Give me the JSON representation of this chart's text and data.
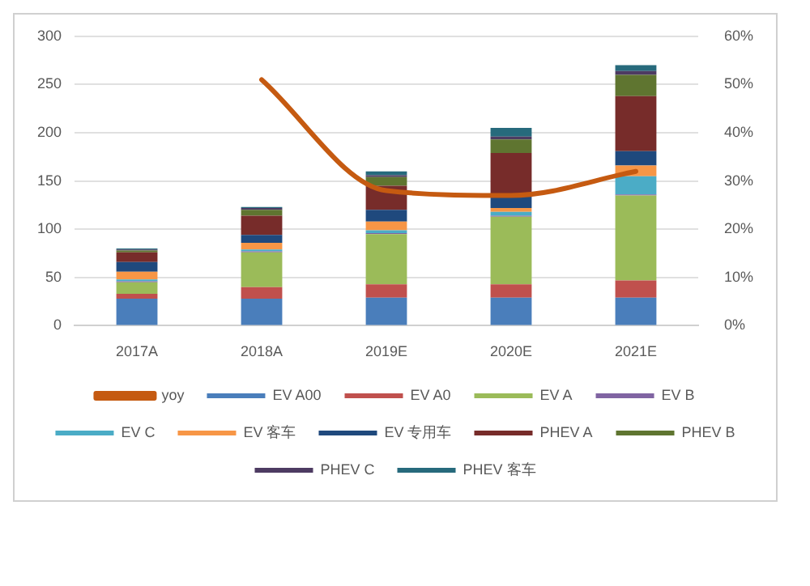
{
  "chart_data": {
    "type": "bar",
    "stacked": true,
    "categories": [
      "2017A",
      "2018A",
      "2019E",
      "2020E",
      "2021E"
    ],
    "series": [
      {
        "name": "EV A00",
        "color": "#4a7ebb",
        "values": [
          28,
          28,
          29,
          29,
          29
        ]
      },
      {
        "name": "EV A0",
        "color": "#c0504d",
        "values": [
          5,
          12,
          14,
          14,
          18
        ]
      },
      {
        "name": "EV A",
        "color": "#9bbb59",
        "values": [
          12,
          36,
          52,
          70,
          88
        ]
      },
      {
        "name": "EV B",
        "color": "#8064a2",
        "values": [
          1,
          1,
          1,
          1,
          1
        ]
      },
      {
        "name": "EV C",
        "color": "#4bacc6",
        "values": [
          2,
          2,
          3,
          4,
          19
        ]
      },
      {
        "name": "EV 客车",
        "color": "#f79646",
        "values": [
          8,
          7,
          9,
          4,
          11
        ]
      },
      {
        "name": "EV 专用车",
        "color": "#1f497d",
        "values": [
          10,
          8,
          12,
          13,
          15
        ]
      },
      {
        "name": "PHEV A",
        "color": "#772c2a",
        "values": [
          10,
          20,
          25,
          44,
          57
        ]
      },
      {
        "name": "PHEV B",
        "color": "#5f7530",
        "values": [
          2,
          6,
          9,
          14,
          22
        ]
      },
      {
        "name": "PHEV C",
        "color": "#4d3b62",
        "values": [
          1,
          2,
          2,
          3,
          4
        ]
      },
      {
        "name": "PHEV 客车",
        "color": "#276a7c",
        "values": [
          1,
          1,
          4,
          9,
          6
        ]
      },
      {
        "name": "yoy",
        "type": "line",
        "axis": "y2",
        "color": "#c55a11",
        "values": [
          null,
          51,
          28,
          27,
          32
        ]
      }
    ],
    "ylim": [
      0,
      300
    ],
    "yticks": [
      0,
      50,
      100,
      150,
      200,
      250,
      300
    ],
    "y2lim": [
      0,
      60
    ],
    "y2ticks": [
      {
        "value": 0,
        "label": "0%"
      },
      {
        "value": 10,
        "label": "10%"
      },
      {
        "value": 20,
        "label": "20%"
      },
      {
        "value": 30,
        "label": "30%"
      },
      {
        "value": 40,
        "label": "40%"
      },
      {
        "value": 50,
        "label": "50%"
      },
      {
        "value": 60,
        "label": "60%"
      }
    ],
    "grid": "y",
    "legend": "bottom",
    "marker": "none",
    "line_style": "solid"
  }
}
